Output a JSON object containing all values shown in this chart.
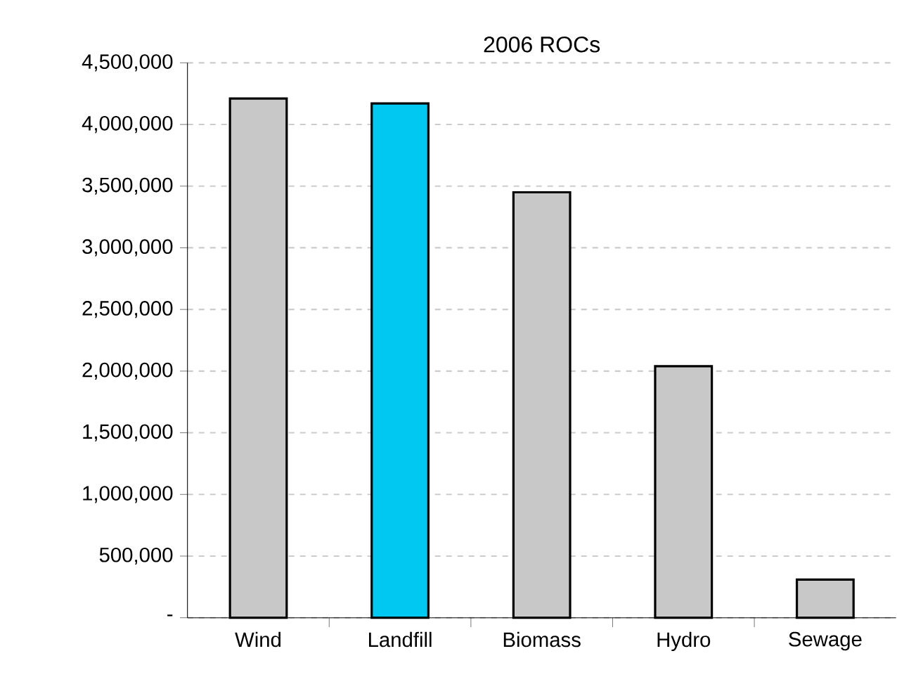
{
  "chart_data": {
    "type": "bar",
    "title": "2006 ROCs",
    "categories": [
      "Wind",
      "Landfill",
      "Biomass",
      "Hydro",
      "Sewage"
    ],
    "values": [
      4210000,
      4170000,
      3450000,
      2040000,
      310000
    ],
    "colors": [
      "#c8c8c8",
      "#00c8f0",
      "#c8c8c8",
      "#c8c8c8",
      "#c8c8c8"
    ],
    "ylim": [
      0,
      4500000
    ],
    "yticks": [
      {
        "value": 0,
        "label": "-"
      },
      {
        "value": 500000,
        "label": "500,000"
      },
      {
        "value": 1000000,
        "label": "1,000,000"
      },
      {
        "value": 1500000,
        "label": "1,500,000"
      },
      {
        "value": 2000000,
        "label": "2,000,000"
      },
      {
        "value": 2500000,
        "label": "2,500,000"
      },
      {
        "value": 3000000,
        "label": "3,000,000"
      },
      {
        "value": 3500000,
        "label": "3,500,000"
      },
      {
        "value": 4000000,
        "label": "4,000,000"
      },
      {
        "value": 4500000,
        "label": "4,500,000"
      }
    ],
    "grid": "y"
  }
}
